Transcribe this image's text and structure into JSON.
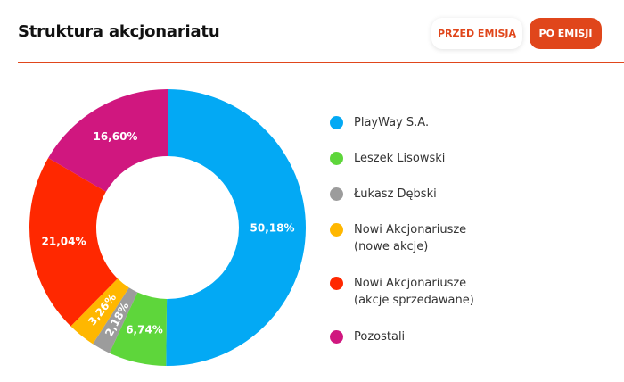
{
  "header": {
    "title": "Struktura akcjonariatu",
    "btn_before": "PRZED EMISJĄ",
    "btn_after": "PO EMISJI"
  },
  "colors": {
    "accent": "#e0461b"
  },
  "chart_data": {
    "type": "pie",
    "variant": "donut",
    "start": "top-center",
    "direction": "clockwise",
    "legend_position": "right",
    "slices": [
      {
        "label": "PlayWay S.A.",
        "value": 50.18,
        "value_label": "50,18%",
        "color": "#03a9f4"
      },
      {
        "label": "Leszek Lisowski",
        "value": 6.74,
        "value_label": "6,74%",
        "color": "#5ed63b"
      },
      {
        "label": "Łukasz Dębski",
        "value": 2.18,
        "value_label": "2,18%",
        "color": "#9c9c9c"
      },
      {
        "label": "Nowi Akcjonariusze\n(nowe akcje)",
        "value": 3.26,
        "value_label": "3,26%",
        "color": "#ffb700"
      },
      {
        "label": "Nowi Akcjonariusze\n(akcje sprzedawane)",
        "value": 21.04,
        "value_label": "21,04%",
        "color": "#ff2800"
      },
      {
        "label": "Pozostali",
        "value": 16.6,
        "value_label": "16,60%",
        "color": "#d0177f"
      }
    ]
  }
}
